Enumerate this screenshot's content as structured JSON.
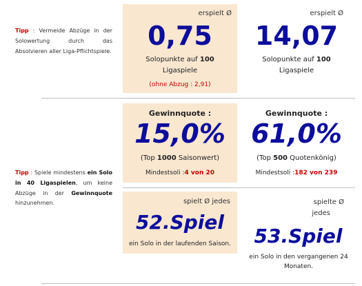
{
  "row1": {
    "tip_label": "Tipp",
    "tip_text": ": Vermeide Abzüge in der Solowertung durch das Absolvieren aller Liga-Pflichtspiele.",
    "col1": {
      "header": "erspielt Ø",
      "value": "0,75",
      "sub_line1_pre": "Solopunkte auf ",
      "sub_line1_bold": "100",
      "sub_line2": "Ligaspiele",
      "note": "(ohne Abzug : 2,91)"
    },
    "col2": {
      "header": "erspielt Ø",
      "value": "14,07",
      "sub_line1_pre": "Solopunkte auf ",
      "sub_line1_bold": "100",
      "sub_line2": "Ligaspiele"
    }
  },
  "row2": {
    "tip_label": "Tipp",
    "tip_text_1": ": Spiele mindestens ",
    "tip_bold_1": "ein Solo in 40 Ligaspielen",
    "tip_text_2": ", um keine Abzüge in der ",
    "tip_bold_2": "Gewinnquote",
    "tip_text_3": " hinzunehmen.",
    "col1": {
      "header": "Gewinnquote :",
      "value": "15,0%",
      "sub_pre": "(Top ",
      "sub_bold": "1000",
      "sub_post": " Saisonwert)",
      "min_label": "Mindestsoli :",
      "min_value": "4 von 20"
    },
    "col2": {
      "header": "Gewinnquote :",
      "value": "61,0%",
      "sub_pre": "(Top ",
      "sub_bold": "500",
      "sub_post": " Quotenkönig)",
      "min_label": "Mindestsoli :",
      "min_value": "182 von 239"
    }
  },
  "row3": {
    "col1": {
      "header": "spielt Ø jedes",
      "value": "52.Spiel",
      "sub": "ein Solo in der laufenden Saison."
    },
    "col2": {
      "header_line1": "spielte Ø",
      "header_line2": "jedes",
      "value": "53.Spiel",
      "sub": "ein Solo in den vergangenen 24 Monaten."
    }
  }
}
